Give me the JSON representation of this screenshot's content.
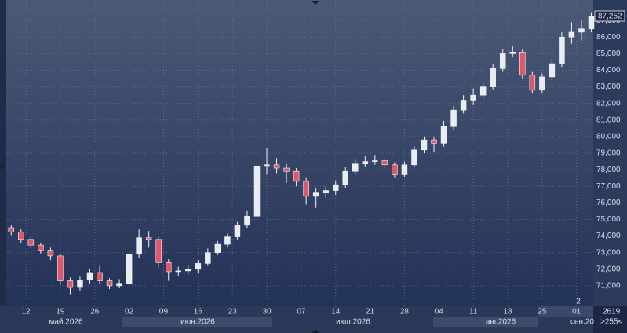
{
  "chart_data": {
    "type": "candlestick",
    "last_price_label": "87,252",
    "counter_label": "2",
    "bar_count": "2619",
    "scale_label": ">255<",
    "months": [
      "май.2026",
      "июн.2026",
      "июл.2026",
      "авг.2026",
      "сен.20"
    ],
    "xlim": [
      128.0,
      247.4
    ],
    "xticks": [
      {
        "value": 132,
        "label": "12"
      },
      {
        "value": 139,
        "label": "19"
      },
      {
        "value": 146,
        "label": "26"
      },
      {
        "value": 153,
        "label": "02"
      },
      {
        "value": 160,
        "label": "09"
      },
      {
        "value": 167,
        "label": "16"
      },
      {
        "value": 174,
        "label": "23"
      },
      {
        "value": 181,
        "label": "30"
      },
      {
        "value": 188,
        "label": "07"
      },
      {
        "value": 195,
        "label": "14"
      },
      {
        "value": 202,
        "label": "21"
      },
      {
        "value": 209,
        "label": "28"
      },
      {
        "value": 216,
        "label": "04"
      },
      {
        "value": 223,
        "label": "11"
      },
      {
        "value": 230,
        "label": "18"
      },
      {
        "value": 237,
        "label": "25"
      },
      {
        "value": 244,
        "label": "01"
      }
    ],
    "ylim": [
      69810,
      88240
    ],
    "yticks": [
      {
        "value": 71000,
        "label": "71,000"
      },
      {
        "value": 72000,
        "label": "72,000"
      },
      {
        "value": 73000,
        "label": "73,000"
      },
      {
        "value": 74000,
        "label": "74,000"
      },
      {
        "value": 75000,
        "label": "75,000"
      },
      {
        "value": 76000,
        "label": "76,000"
      },
      {
        "value": 77000,
        "label": "77,000"
      },
      {
        "value": 78000,
        "label": "78,000"
      },
      {
        "value": 79000,
        "label": "79,000"
      },
      {
        "value": 80000,
        "label": "80,000"
      },
      {
        "value": 81000,
        "label": "81,000"
      },
      {
        "value": 82000,
        "label": "82,000"
      },
      {
        "value": 83000,
        "label": "83,000"
      },
      {
        "value": 84000,
        "label": "84,000"
      },
      {
        "value": 85000,
        "label": "85,000"
      },
      {
        "value": 86000,
        "label": "86,000"
      },
      {
        "value": 87000,
        "label": "87,000"
      }
    ],
    "grid": true,
    "up_color": "#e9ecf2",
    "down_color": "#e0566a",
    "x": [
      129,
      131,
      133,
      135,
      137,
      139,
      141,
      143,
      145,
      147,
      149,
      151,
      153,
      155,
      157,
      159,
      161,
      163,
      165,
      167,
      169,
      171,
      173,
      175,
      177,
      179,
      181,
      183,
      185,
      187,
      189,
      191,
      193,
      195,
      197,
      199,
      201,
      203,
      205,
      207,
      209,
      211,
      213,
      215,
      217,
      219,
      221,
      223,
      225,
      227,
      229,
      231,
      233,
      235,
      237,
      239,
      241,
      243,
      245,
      247
    ],
    "open": [
      74500,
      74250,
      73800,
      73450,
      73150,
      72800,
      71300,
      70900,
      71350,
      71800,
      71300,
      71000,
      71150,
      72900,
      73900,
      73800,
      72400,
      71850,
      71900,
      72000,
      72350,
      73000,
      73500,
      73950,
      74650,
      75200,
      78200,
      78300,
      78100,
      77900,
      77300,
      76400,
      76600,
      76750,
      77100,
      77900,
      78350,
      78500,
      78550,
      78300,
      77700,
      78300,
      79200,
      79800,
      79600,
      80600,
      81600,
      82200,
      82500,
      83000,
      84100,
      85000,
      85100,
      83700,
      82800,
      83600,
      84400,
      86000,
      86300,
      86500
    ],
    "high": [
      74650,
      74400,
      73950,
      73600,
      73300,
      72950,
      71500,
      71550,
      72000,
      72200,
      71450,
      71400,
      73100,
      74400,
      74300,
      73950,
      72600,
      72150,
      72250,
      72550,
      73250,
      73700,
      74150,
      74850,
      75500,
      79000,
      79300,
      78700,
      78350,
      78100,
      77500,
      76900,
      77000,
      77350,
      78150,
      78600,
      78800,
      78900,
      78700,
      78450,
      78500,
      79400,
      80000,
      80000,
      80950,
      81850,
      82500,
      82900,
      83250,
      84400,
      85300,
      85500,
      85300,
      83900,
      83800,
      84700,
      86300,
      86900,
      87050,
      87500
    ],
    "low": [
      74050,
      73600,
      73250,
      72950,
      72550,
      71050,
      70500,
      70700,
      71150,
      71100,
      70800,
      70850,
      71000,
      72700,
      73300,
      72100,
      71300,
      71600,
      71700,
      71800,
      72200,
      72850,
      73300,
      73800,
      74500,
      75000,
      77700,
      77800,
      77200,
      77000,
      75900,
      75700,
      76300,
      76500,
      76900,
      77700,
      78150,
      78300,
      78100,
      77500,
      77550,
      78150,
      79000,
      79100,
      79400,
      80400,
      81400,
      81900,
      82300,
      82850,
      83900,
      84800,
      83500,
      82600,
      82650,
      83400,
      84200,
      85600,
      85800,
      86300
    ],
    "close": [
      74250,
      73800,
      73450,
      73150,
      72800,
      71300,
      70900,
      71350,
      71800,
      71300,
      71000,
      71150,
      72900,
      73900,
      73800,
      72400,
      71850,
      71900,
      72000,
      72350,
      73000,
      73500,
      73950,
      74650,
      75200,
      78200,
      78300,
      78100,
      77900,
      77300,
      76400,
      76600,
      76750,
      77100,
      77900,
      78350,
      78500,
      78550,
      78300,
      77700,
      78300,
      79200,
      79800,
      79600,
      80600,
      81600,
      82200,
      82500,
      83000,
      84100,
      85000,
      85100,
      83700,
      82800,
      83600,
      84400,
      86000,
      86300,
      86500,
      87252
    ]
  }
}
